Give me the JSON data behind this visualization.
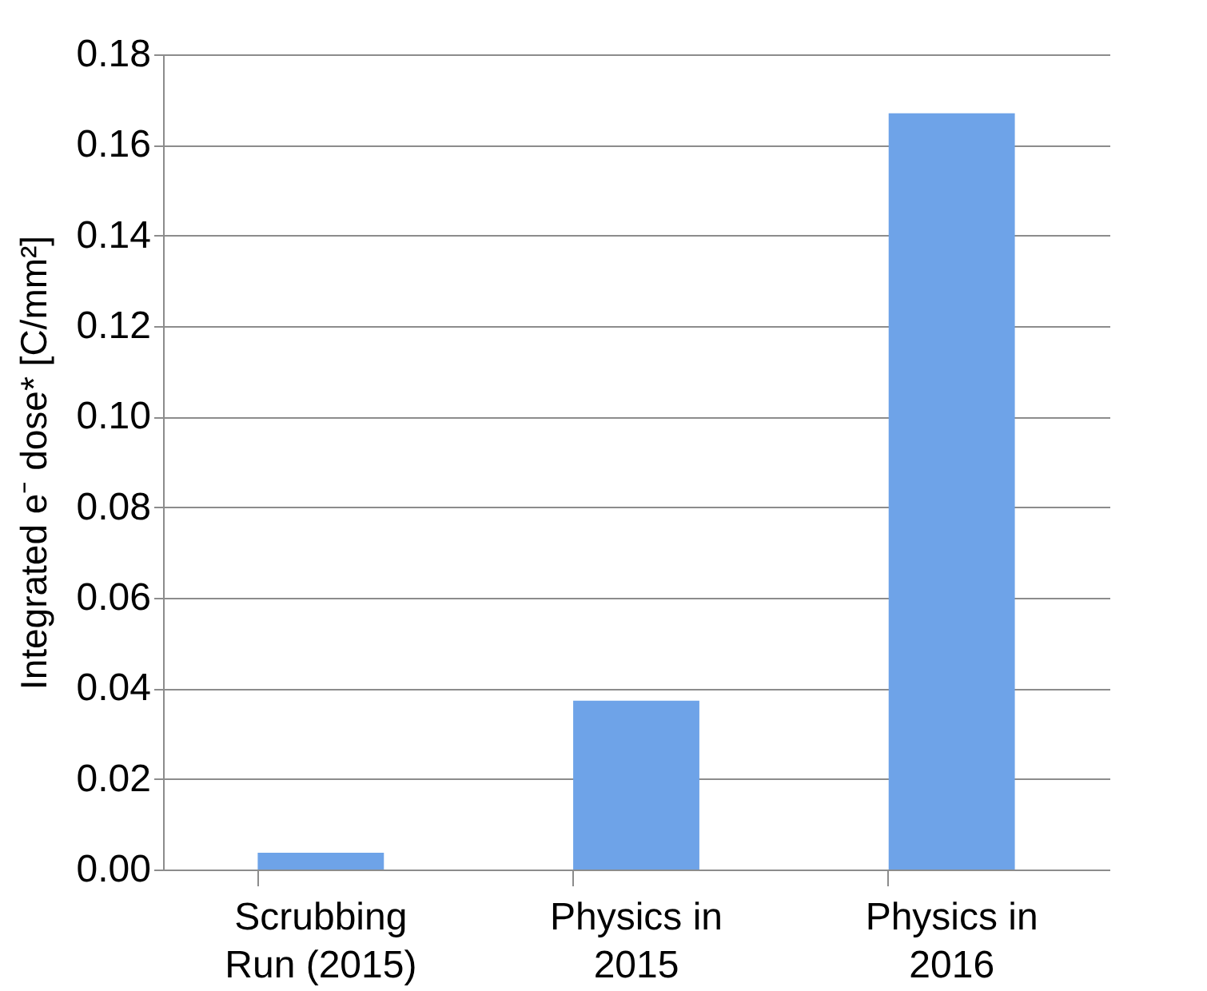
{
  "chart_data": {
    "type": "bar",
    "ylabel": "Integrated e⁻ dose* [C/mm²]",
    "categories": [
      "Scrubbing Run (2015)",
      "Physics in 2015",
      "Physics in 2016"
    ],
    "values": [
      0.0037,
      0.0373,
      0.167
    ],
    "color": "#6ea3e8",
    "ylim": [
      0,
      0.18
    ],
    "yticks": [
      {
        "value": 0,
        "label": "0.00"
      },
      0.02,
      0.04,
      0.06,
      0.08,
      {
        "value": 0.1,
        "label": "0.10"
      },
      0.12,
      0.14,
      0.16,
      0.18
    ],
    "grid": "y"
  }
}
